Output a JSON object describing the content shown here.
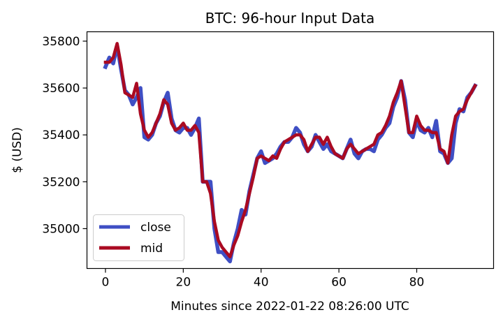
{
  "chart_data": {
    "type": "line",
    "title": "BTC: 96-hour Input Data",
    "xlabel": "Minutes since 2022-01-22 08:26:00 UTC",
    "ylabel": "$ (USD)",
    "xlim": [
      -4.75,
      99.75
    ],
    "ylim": [
      34830,
      35840
    ],
    "xticks": [
      0,
      20,
      40,
      60,
      80
    ],
    "yticks": [
      35000,
      35200,
      35400,
      35600,
      35800
    ],
    "grid": false,
    "legend_position": "lower-left",
    "series": [
      {
        "name": "close",
        "color": "#3f4fc4",
        "values": [
          35690,
          35730,
          35705,
          35780,
          35680,
          35590,
          35570,
          35530,
          35560,
          35600,
          35390,
          35380,
          35400,
          35450,
          35480,
          35540,
          35580,
          35470,
          35420,
          35410,
          35430,
          35430,
          35400,
          35430,
          35470,
          35200,
          35200,
          35200,
          35000,
          34900,
          34900,
          34880,
          34860,
          34940,
          35000,
          35080,
          35060,
          35160,
          35230,
          35300,
          35330,
          35280,
          35290,
          35300,
          35320,
          35350,
          35370,
          35370,
          35390,
          35430,
          35410,
          35360,
          35330,
          35350,
          35400,
          35370,
          35340,
          35360,
          35330,
          35320,
          35310,
          35300,
          35340,
          35380,
          35320,
          35300,
          35330,
          35340,
          35340,
          35330,
          35380,
          35400,
          35430,
          35450,
          35520,
          35560,
          35630,
          35550,
          35410,
          35390,
          35460,
          35420,
          35410,
          35430,
          35390,
          35460,
          35330,
          35320,
          35280,
          35300,
          35450,
          35510,
          35500,
          35560,
          35580,
          35610
        ]
      },
      {
        "name": "mid",
        "color": "#aa0a22",
        "values": [
          35710,
          35710,
          35730,
          35790,
          35700,
          35580,
          35570,
          35560,
          35620,
          35490,
          35420,
          35390,
          35410,
          35450,
          35490,
          35550,
          35530,
          35450,
          35420,
          35430,
          35450,
          35420,
          35420,
          35440,
          35410,
          35200,
          35200,
          35150,
          35030,
          34950,
          34920,
          34900,
          34880,
          34930,
          34970,
          35030,
          35080,
          35150,
          35220,
          35300,
          35310,
          35300,
          35290,
          35310,
          35300,
          35340,
          35370,
          35380,
          35390,
          35400,
          35400,
          35380,
          35330,
          35360,
          35390,
          35390,
          35360,
          35390,
          35350,
          35320,
          35310,
          35300,
          35340,
          35360,
          35340,
          35320,
          35330,
          35340,
          35350,
          35360,
          35400,
          35410,
          35440,
          35480,
          35540,
          35580,
          35630,
          35520,
          35410,
          35410,
          35480,
          35440,
          35420,
          35420,
          35410,
          35410,
          35340,
          35330,
          35280,
          35400,
          35480,
          35500,
          35510,
          35550,
          35580,
          35610
        ]
      }
    ]
  }
}
